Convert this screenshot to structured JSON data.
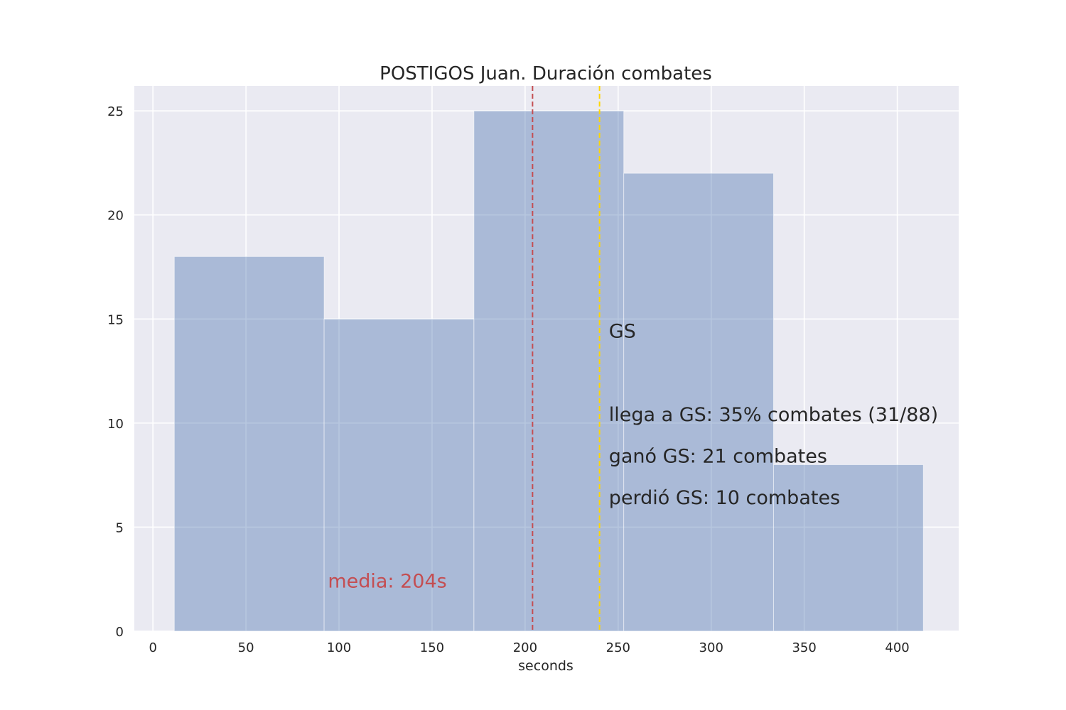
{
  "chart_data": {
    "type": "bar",
    "title": "POSTIGOS Juan. Duración combates",
    "xlabel": "seconds",
    "ylabel": "",
    "xlim": [
      -10,
      433
    ],
    "ylim": [
      0,
      26.2
    ],
    "x_ticks": [
      0,
      50,
      100,
      150,
      200,
      250,
      300,
      350,
      400
    ],
    "y_ticks": [
      0,
      5,
      10,
      15,
      20,
      25
    ],
    "grid": true,
    "legend": "none",
    "bins": [
      {
        "start": 11.5,
        "end": 92,
        "count": 18
      },
      {
        "start": 92,
        "end": 172.5,
        "count": 15
      },
      {
        "start": 172.5,
        "end": 253,
        "count": 25
      },
      {
        "start": 253,
        "end": 333.5,
        "count": 22
      },
      {
        "start": 333.5,
        "end": 414,
        "count": 8
      }
    ],
    "vlines": [
      {
        "name": "media",
        "x": 204,
        "color": "#c44e52",
        "style": "dashed"
      },
      {
        "name": "GS",
        "x": 240,
        "color": "#ffd700",
        "style": "dashed"
      }
    ],
    "annotations": [
      {
        "text": "media: 204s",
        "x": 94,
        "y": 2.1,
        "color": "#c44e52"
      },
      {
        "text": "GS",
        "x": 245,
        "y": 14.1,
        "color": "#262626"
      },
      {
        "text": "llega a GS: 35% combates (31/88)",
        "x": 245,
        "y": 10.1,
        "color": "#262626"
      },
      {
        "text": "ganó GS: 21 combates",
        "x": 245,
        "y": 8.1,
        "color": "#262626"
      },
      {
        "text": "perdió GS: 10 combates",
        "x": 245,
        "y": 6.1,
        "color": "#262626"
      }
    ],
    "colors": {
      "bar": "#4c72b0",
      "background": "#eaeaf2",
      "grid": "#ffffff"
    }
  }
}
